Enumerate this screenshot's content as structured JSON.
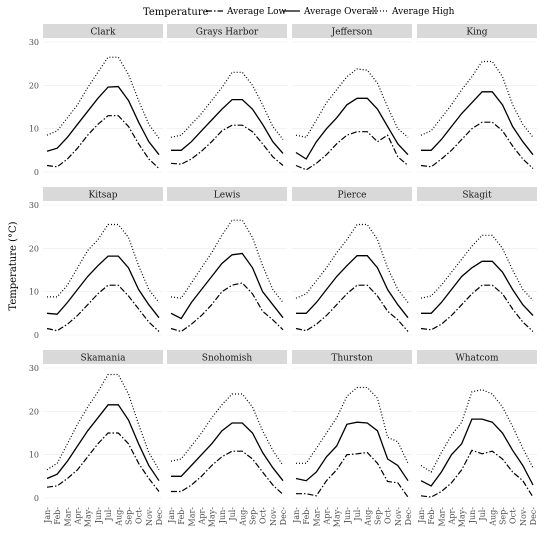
{
  "legend": {
    "title": "Temperature",
    "entries": [
      "Average Low",
      "Average Overall",
      "Average High"
    ]
  },
  "y_axis_title": "Temperature (°C)",
  "chart_data": {
    "type": "line",
    "ylim": [
      0,
      30
    ],
    "yticks": [
      0,
      10,
      20,
      30
    ],
    "categories": [
      "Jan",
      "Feb",
      "Mar",
      "Apr",
      "May",
      "Jun",
      "Jul",
      "Aug",
      "Sep",
      "Oct",
      "Nov",
      "Dec"
    ],
    "series_styles": [
      {
        "name": "Average Low",
        "dash": "6,2,1.5,2"
      },
      {
        "name": "Average Overall",
        "dash": ""
      },
      {
        "name": "Average High",
        "dash": "1,2"
      }
    ],
    "legend_position": "top",
    "grid": true,
    "facets": [
      {
        "title": "Clark",
        "low": [
          1.5,
          1.2,
          3.0,
          5.5,
          8.5,
          11.0,
          13.0,
          13.0,
          10.5,
          6.5,
          3.0,
          0.8
        ],
        "overall": [
          4.8,
          5.5,
          8.0,
          11.0,
          14.0,
          17.0,
          19.6,
          19.7,
          16.5,
          11.5,
          7.0,
          4.0
        ],
        "high": [
          8.5,
          9.5,
          12.5,
          15.5,
          19.5,
          23.0,
          26.5,
          26.5,
          22.5,
          16.5,
          11.0,
          7.8
        ]
      },
      {
        "title": "Grays Harbor",
        "low": [
          2.0,
          1.8,
          3.0,
          4.8,
          7.0,
          9.5,
          10.8,
          10.8,
          9.3,
          6.5,
          3.5,
          1.5
        ],
        "overall": [
          5.0,
          5.0,
          7.0,
          9.5,
          12.0,
          14.5,
          16.7,
          16.7,
          14.5,
          11.0,
          7.0,
          4.3
        ],
        "high": [
          8.0,
          8.5,
          11.0,
          13.5,
          16.5,
          19.5,
          23.0,
          23.0,
          20.0,
          15.5,
          10.5,
          7.5
        ]
      },
      {
        "title": "Jefferson",
        "low": [
          1.5,
          0.5,
          2.0,
          4.0,
          6.5,
          8.5,
          9.3,
          9.3,
          7.0,
          8.5,
          3.5,
          1.5
        ],
        "overall": [
          4.5,
          3.0,
          7.0,
          10.0,
          12.5,
          15.5,
          17.0,
          17.0,
          14.5,
          10.5,
          6.5,
          4.0
        ],
        "high": [
          8.5,
          8.0,
          12.0,
          16.0,
          19.0,
          22.0,
          23.8,
          23.5,
          20.5,
          15.0,
          10.0,
          8.0
        ]
      },
      {
        "title": "King",
        "low": [
          1.5,
          1.2,
          3.0,
          5.0,
          7.5,
          10.0,
          11.5,
          11.5,
          9.5,
          6.0,
          3.0,
          0.8
        ],
        "overall": [
          5.0,
          5.0,
          7.5,
          10.5,
          13.5,
          16.0,
          18.5,
          18.5,
          15.5,
          10.5,
          7.0,
          4.0
        ],
        "high": [
          8.5,
          9.5,
          12.5,
          15.5,
          19.0,
          22.0,
          25.5,
          25.5,
          22.0,
          15.5,
          11.0,
          8.0
        ]
      },
      {
        "title": "Kitsap",
        "low": [
          1.5,
          1.0,
          2.5,
          4.5,
          7.0,
          9.5,
          11.5,
          11.5,
          9.0,
          6.0,
          3.0,
          0.8
        ],
        "overall": [
          5.0,
          4.8,
          7.5,
          10.5,
          13.5,
          16.0,
          18.2,
          18.2,
          15.5,
          10.5,
          7.0,
          4.0
        ],
        "high": [
          8.8,
          8.8,
          11.5,
          15.5,
          19.5,
          22.0,
          25.5,
          25.5,
          22.5,
          16.0,
          10.5,
          7.5
        ]
      },
      {
        "title": "Lewis",
        "low": [
          1.5,
          0.8,
          2.5,
          4.5,
          7.0,
          10.0,
          11.5,
          12.0,
          9.5,
          5.5,
          3.5,
          1.2
        ],
        "overall": [
          5.0,
          3.8,
          7.5,
          10.5,
          13.5,
          16.5,
          18.5,
          18.8,
          15.5,
          10.0,
          7.0,
          4.0
        ],
        "high": [
          8.8,
          8.5,
          12.0,
          15.5,
          19.0,
          23.0,
          26.5,
          26.5,
          22.5,
          16.0,
          10.5,
          7.5
        ]
      },
      {
        "title": "Pierce",
        "low": [
          1.5,
          1.0,
          2.5,
          4.5,
          7.0,
          9.5,
          11.5,
          11.5,
          9.0,
          5.5,
          3.5,
          0.8
        ],
        "overall": [
          5.0,
          5.0,
          7.5,
          10.5,
          13.5,
          16.0,
          18.3,
          18.3,
          15.5,
          10.5,
          7.0,
          4.0
        ],
        "high": [
          8.5,
          9.5,
          12.5,
          15.5,
          19.0,
          22.0,
          25.5,
          25.5,
          22.0,
          15.5,
          10.5,
          7.5
        ]
      },
      {
        "title": "Skagit",
        "low": [
          1.5,
          1.2,
          2.5,
          4.5,
          7.0,
          9.5,
          11.5,
          11.5,
          9.5,
          6.0,
          3.0,
          0.8
        ],
        "overall": [
          5.0,
          5.0,
          7.5,
          10.5,
          13.5,
          15.5,
          17.0,
          17.0,
          14.5,
          10.5,
          7.0,
          4.5
        ],
        "high": [
          8.5,
          9.0,
          11.5,
          14.5,
          17.5,
          20.5,
          23.0,
          23.0,
          20.0,
          15.0,
          10.5,
          8.0
        ]
      },
      {
        "title": "Skamania",
        "low": [
          2.5,
          2.8,
          4.5,
          6.5,
          9.5,
          12.5,
          15.0,
          15.0,
          12.5,
          8.0,
          4.5,
          1.5
        ],
        "overall": [
          4.5,
          5.5,
          8.5,
          12.0,
          15.5,
          18.5,
          21.5,
          21.5,
          18.0,
          12.5,
          7.5,
          4.0
        ],
        "high": [
          6.5,
          8.0,
          12.5,
          17.0,
          21.0,
          24.5,
          28.5,
          28.5,
          24.0,
          17.0,
          10.5,
          6.5
        ]
      },
      {
        "title": "Snohomish",
        "low": [
          1.5,
          1.5,
          3.0,
          5.0,
          7.5,
          9.5,
          10.8,
          10.8,
          9.0,
          6.0,
          3.0,
          0.8
        ],
        "overall": [
          5.0,
          5.0,
          7.5,
          10.0,
          12.5,
          15.5,
          17.3,
          17.3,
          15.0,
          10.5,
          7.0,
          4.0
        ],
        "high": [
          8.5,
          9.0,
          12.0,
          15.0,
          18.5,
          21.5,
          24.0,
          24.0,
          21.0,
          15.5,
          11.0,
          7.5
        ]
      },
      {
        "title": "Thurston",
        "low": [
          1.0,
          1.0,
          0.5,
          4.0,
          6.5,
          10.0,
          10.2,
          10.5,
          8.0,
          3.8,
          3.5,
          0.2
        ],
        "overall": [
          4.5,
          4.0,
          6.0,
          9.5,
          12.0,
          17.0,
          17.5,
          17.3,
          15.5,
          9.0,
          7.5,
          4.0
        ],
        "high": [
          8.0,
          8.0,
          11.5,
          15.0,
          18.5,
          23.5,
          25.5,
          25.5,
          23.0,
          14.0,
          13.0,
          8.0
        ]
      },
      {
        "title": "Whatcom",
        "low": [
          0.5,
          0.2,
          1.5,
          3.5,
          6.5,
          11.0,
          10.2,
          10.8,
          9.0,
          6.0,
          4.0,
          0.2
        ],
        "overall": [
          4.0,
          2.8,
          6.0,
          10.0,
          12.5,
          18.2,
          18.2,
          17.5,
          15.0,
          11.0,
          7.5,
          3.0
        ],
        "high": [
          7.5,
          6.0,
          10.5,
          14.5,
          17.5,
          24.5,
          25.0,
          24.0,
          21.0,
          16.5,
          11.5,
          7.0
        ]
      }
    ]
  }
}
